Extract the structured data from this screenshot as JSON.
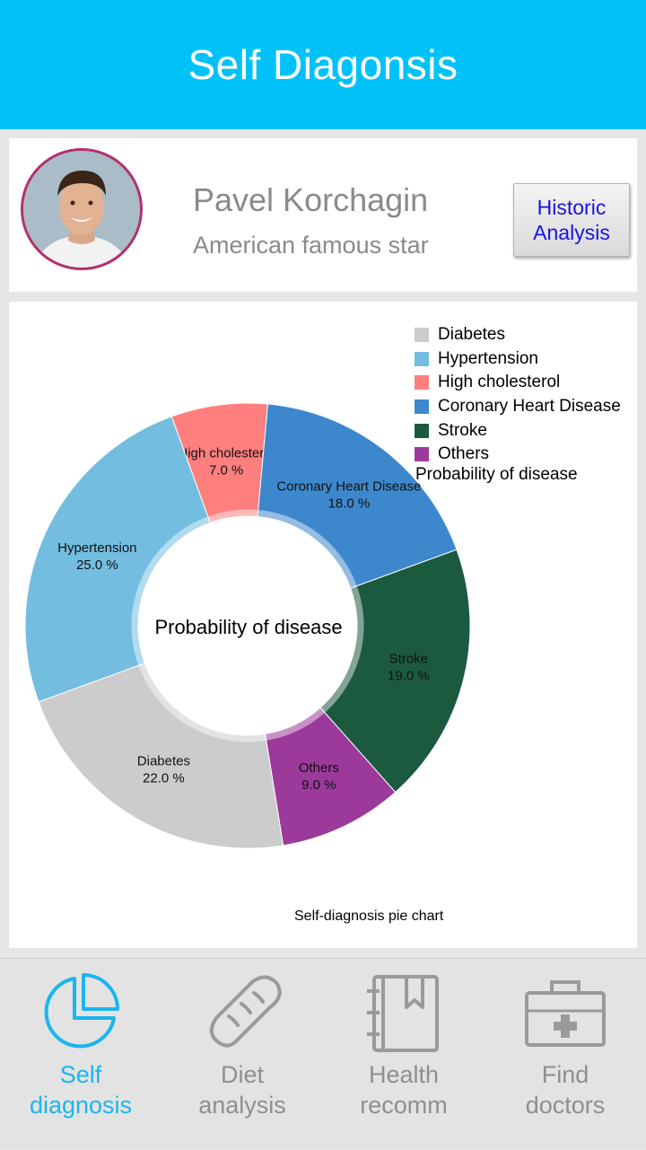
{
  "header": {
    "title": "Self Diagonsis"
  },
  "profile": {
    "name": "Pavel Korchagin",
    "subtitle": "American famous star",
    "historic_button": "Historic Analysis"
  },
  "chart_data": {
    "type": "pie",
    "style": "donut",
    "center_label": "Probability of disease",
    "legend_title": "Probability of disease",
    "legend_position": "top-right",
    "description": "Self-diagnosis pie chart",
    "slices": [
      {
        "label": "High cholesterol",
        "value": 7.0,
        "display": "7.0 %",
        "color": "#ff7f7f"
      },
      {
        "label": "Coronary Heart Disease",
        "value": 18.0,
        "display": "18.0 %",
        "color": "#3d88cc"
      },
      {
        "label": "Stroke",
        "value": 19.0,
        "display": "19.0 %",
        "color": "#1c5a3f"
      },
      {
        "label": "Others",
        "value": 9.0,
        "display": "9.0 %",
        "color": "#9c3a9b"
      },
      {
        "label": "Diabetes",
        "value": 22.0,
        "display": "22.0 %",
        "color": "#cccccc"
      },
      {
        "label": "Hypertension",
        "value": 25.0,
        "display": "25.0 %",
        "color": "#73bde0"
      }
    ],
    "legend": [
      {
        "label": "Diabetes",
        "color": "#cccccc"
      },
      {
        "label": "Hypertension",
        "color": "#73bde0"
      },
      {
        "label": "High cholesterol",
        "color": "#ff7f7f"
      },
      {
        "label": "Coronary Heart Disease",
        "color": "#3d88cc"
      },
      {
        "label": "Stroke",
        "color": "#1c5a3f"
      },
      {
        "label": "Others",
        "color": "#9c3a9b"
      }
    ]
  },
  "nav": {
    "items": [
      {
        "label_line1": "Self",
        "label_line2": "diagnosis",
        "icon": "pie-chart-icon",
        "active": true
      },
      {
        "label_line1": "Diet",
        "label_line2": "analysis",
        "icon": "bread-icon",
        "active": false
      },
      {
        "label_line1": "Health",
        "label_line2": "recomm",
        "icon": "notebook-icon",
        "active": false
      },
      {
        "label_line1": "Find",
        "label_line2": "doctors",
        "icon": "medical-kit-icon",
        "active": false
      }
    ]
  },
  "colors": {
    "header": "#00c2f8",
    "accent": "#1ab6ee",
    "button_text": "#1a12e0",
    "muted": "#8f8f8f"
  }
}
